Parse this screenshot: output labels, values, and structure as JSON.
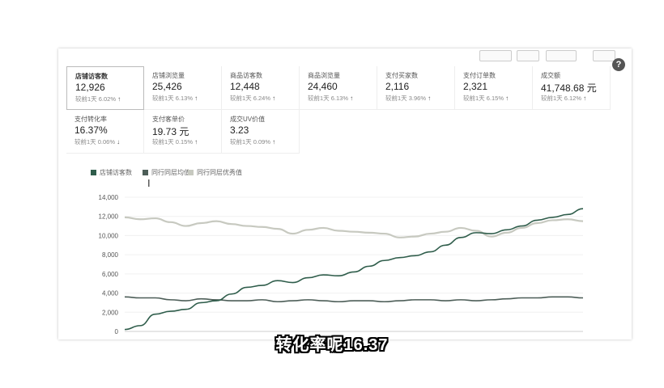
{
  "metrics": [
    {
      "label": "店铺访客数",
      "value": "12,926",
      "compare": "较前1天 6.02%",
      "trend": "up",
      "selected": true
    },
    {
      "label": "店铺浏览量",
      "value": "25,426",
      "compare": "较前1天 6.13%",
      "trend": "up"
    },
    {
      "label": "商品访客数",
      "value": "12,448",
      "compare": "较前1天 6.24%",
      "trend": "up"
    },
    {
      "label": "商品浏览量",
      "value": "24,460",
      "compare": "较前1天 6.13%",
      "trend": "up"
    },
    {
      "label": "支付买家数",
      "value": "2,116",
      "compare": "较前1天 3.96%",
      "trend": "up"
    },
    {
      "label": "支付订单数",
      "value": "2,321",
      "compare": "较前1天 6.15%",
      "trend": "up"
    },
    {
      "label": "成交额",
      "value": "41,748.68 元",
      "compare": "较前1天 6.12%",
      "trend": "up"
    },
    {
      "label": "支付转化率",
      "value": "16.37%",
      "compare": "较前1天 0.06%",
      "trend": "down"
    },
    {
      "label": "支付客单价",
      "value": "19.73 元",
      "compare": "较前1天 0.15%",
      "trend": "up"
    },
    {
      "label": "成交UV价值",
      "value": "3.23",
      "compare": "较前1天 0.09%",
      "trend": "up"
    }
  ],
  "icons": {
    "trend_up": "arrow-up-icon",
    "trend_down": "arrow-down-icon",
    "help": "question-icon",
    "cursor": "text-cursor-icon"
  },
  "glyphs": {
    "up": "↑",
    "down": "↓",
    "help": "?",
    "cursor": "I"
  },
  "chart_data": {
    "type": "line",
    "x": [
      0,
      1,
      2,
      3,
      4,
      5,
      6,
      7,
      8,
      9,
      10,
      11,
      12,
      13,
      14,
      15,
      16,
      17,
      18,
      19,
      20,
      21,
      22,
      23,
      24,
      25,
      26,
      27,
      28,
      29,
      30
    ],
    "ylim": [
      0,
      14000
    ],
    "yticks": [
      "0",
      "2,000",
      "4,000",
      "6,000",
      "8,000",
      "10,000",
      "12,000",
      "14,000"
    ],
    "ytick_values": [
      0,
      2000,
      4000,
      6000,
      8000,
      10000,
      12000,
      14000
    ],
    "grid": true,
    "legend_position": "top-left",
    "series": [
      {
        "name": "店铺访客数",
        "color": "#2f5d4b",
        "values": [
          200,
          600,
          1800,
          2100,
          2300,
          3000,
          3200,
          3900,
          4600,
          4800,
          5300,
          5100,
          5600,
          5900,
          5800,
          6200,
          6800,
          7400,
          7700,
          7900,
          8300,
          9000,
          9800,
          10300,
          10200,
          10600,
          11000,
          11600,
          11900,
          12200,
          12800
        ]
      },
      {
        "name": "同行同层均值",
        "color": "#4d5e58",
        "values": [
          3600,
          3500,
          3500,
          3300,
          3200,
          3400,
          3300,
          3200,
          3200,
          3300,
          3100,
          3200,
          3300,
          3200,
          3100,
          3200,
          3200,
          3100,
          3200,
          3300,
          3300,
          3200,
          3300,
          3200,
          3300,
          3400,
          3500,
          3500,
          3600,
          3600,
          3500
        ]
      },
      {
        "name": "同行同层优秀值",
        "color": "#c7c9c0",
        "values": [
          11900,
          11700,
          11800,
          11400,
          11000,
          11300,
          11500,
          11200,
          11000,
          10900,
          10700,
          10200,
          10600,
          10800,
          10500,
          10400,
          10300,
          10200,
          9800,
          9900,
          10200,
          10400,
          10800,
          10500,
          9900,
          10300,
          10800,
          11300,
          11600,
          11700,
          11500
        ]
      }
    ]
  },
  "subtitle": "转化率呢16.37"
}
